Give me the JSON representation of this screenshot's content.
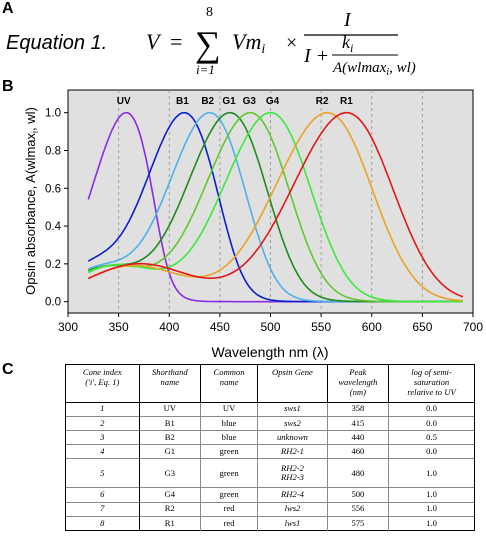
{
  "panels": {
    "a": "A",
    "b": "B",
    "c": "C"
  },
  "equation": {
    "label": "Equation 1.",
    "lhs": "V",
    "equals": "=",
    "sum_upper": "8",
    "sum_lower": "i=1",
    "vm": "Vm",
    "vm_sub": "i",
    "times": "×",
    "numerator": "I",
    "den_prefix": "I +",
    "k": "k",
    "k_sub": "i",
    "a_func": "A(wlmax",
    "a_sub": "i",
    "a_tail": ", wl)"
  },
  "chart_data": {
    "type": "line",
    "xlabel": "Wavelength nm (λ)",
    "ylabel": "Opsin absorbance, A(wlmax",
    "ylabel_sub": "i",
    "ylabel_tail": ", wl)",
    "xlim": [
      300,
      700
    ],
    "ylim": [
      -0.06,
      1.12
    ],
    "x_ticks": [
      300,
      350,
      400,
      450,
      500,
      550,
      600,
      650,
      700
    ],
    "y_ticks": [
      0.0,
      0.2,
      0.4,
      0.6,
      0.8,
      1.0
    ],
    "y_tick_labels": [
      "0.0",
      "0.2",
      "0.4",
      "0.6",
      "0.8",
      "1.0"
    ],
    "dashed_verticals": [
      350,
      400,
      450,
      500,
      550,
      600,
      650
    ],
    "plot_background": "#e0e0e0",
    "x_range_plotted": [
      320,
      690
    ],
    "series": [
      {
        "name": "UV",
        "peak": 358,
        "color": "#8a2be2",
        "beta": 0.03
      },
      {
        "name": "B1",
        "peak": 415,
        "color": "#0a1fcc",
        "beta": 0.16
      },
      {
        "name": "B2",
        "peak": 440,
        "color": "#4fb0ea",
        "beta": 0.16
      },
      {
        "name": "G1",
        "peak": 460,
        "color": "#1f8a1f",
        "beta": 0.17
      },
      {
        "name": "G3",
        "peak": 480,
        "color": "#62c72f",
        "beta": 0.18
      },
      {
        "name": "G4",
        "peak": 500,
        "color": "#3ce83c",
        "beta": 0.19
      },
      {
        "name": "R2",
        "peak": 556,
        "color": "#eaa326",
        "beta": 0.19
      },
      {
        "name": "R1",
        "peak": 575,
        "color": "#e01818",
        "beta": 0.2
      }
    ],
    "peak_labels": [
      {
        "text": "UV",
        "x": 355
      },
      {
        "text": "B1",
        "x": 413
      },
      {
        "text": "B2",
        "x": 438
      },
      {
        "text": "G1",
        "x": 459
      },
      {
        "text": "G3",
        "x": 479
      },
      {
        "text": "G4",
        "x": 502
      },
      {
        "text": "R2",
        "x": 551
      },
      {
        "text": "R1",
        "x": 575
      }
    ]
  },
  "table": {
    "headers": [
      [
        "Cone index",
        "('i', Eq. 1)"
      ],
      [
        "Shorthand",
        "name"
      ],
      [
        "Common",
        "name"
      ],
      [
        "Opsin Gene"
      ],
      [
        "Peak",
        "wavelength",
        "(nm)"
      ],
      [
        "log of semi-",
        "saturation",
        "relative to UV"
      ]
    ],
    "rows": [
      {
        "index": "1",
        "short": "UV",
        "common": "UV",
        "gene": [
          "sws1"
        ],
        "peak": "358",
        "log": "0.0"
      },
      {
        "index": "2",
        "short": "B1",
        "common": "blue",
        "gene": [
          "sws2"
        ],
        "peak": "415",
        "log": "0.0"
      },
      {
        "index": "3",
        "short": "B2",
        "common": "blue",
        "gene": [
          "unknown"
        ],
        "peak": "440",
        "log": "0.5"
      },
      {
        "index": "4",
        "short": "G1",
        "common": "green",
        "gene": [
          "RH2-1"
        ],
        "peak": "460",
        "log": "0.0"
      },
      {
        "index": "5",
        "short": "G3",
        "common": "green",
        "gene": [
          "RH2-2",
          "RH2-3"
        ],
        "peak": "480",
        "log": "1.0"
      },
      {
        "index": "6",
        "short": "G4",
        "common": "green",
        "gene": [
          "RH2-4"
        ],
        "peak": "500",
        "log": "1.0"
      },
      {
        "index": "7",
        "short": "R2",
        "common": "red",
        "gene": [
          "lws2"
        ],
        "peak": "556",
        "log": "1.0"
      },
      {
        "index": "8",
        "short": "R1",
        "common": "red",
        "gene": [
          "lws1"
        ],
        "peak": "575",
        "log": "1.0"
      }
    ]
  }
}
